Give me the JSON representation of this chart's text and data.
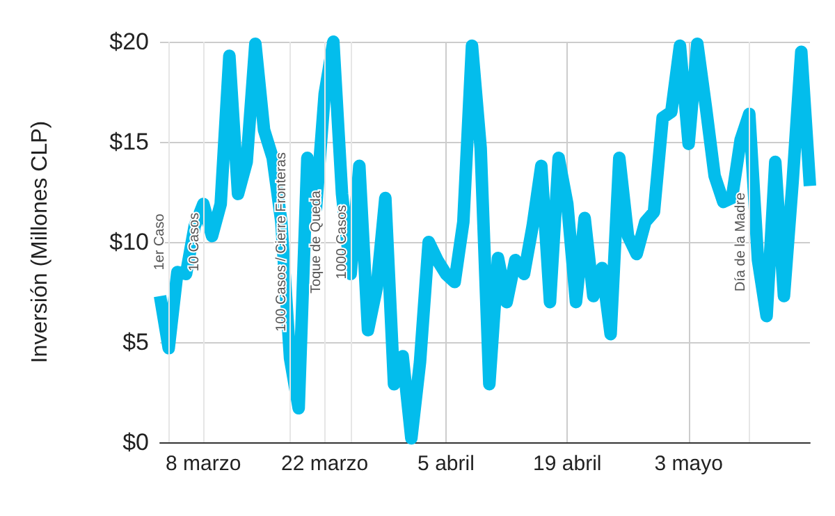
{
  "chart_data": {
    "type": "line",
    "ylabel": "Inversión (Millones CLP)",
    "x": [
      "--03-03",
      "--03-04",
      "--03-05",
      "--03-06",
      "--03-07",
      "--03-08",
      "--03-09",
      "--03-10",
      "--03-11",
      "--03-12",
      "--03-13",
      "--03-14",
      "--03-15",
      "--03-16",
      "--03-17",
      "--03-18",
      "--03-19",
      "--03-20",
      "--03-21",
      "--03-22",
      "--03-23",
      "--03-24",
      "--03-25",
      "--03-26",
      "--03-27",
      "--03-28",
      "--03-29",
      "--03-30",
      "--03-31",
      "--04-01",
      "--04-02",
      "--04-03",
      "--04-04",
      "--04-05",
      "--04-06",
      "--04-07",
      "--04-08",
      "--04-09",
      "--04-10",
      "--04-11",
      "--04-12",
      "--04-13",
      "--04-14",
      "--04-15",
      "--04-16",
      "--04-17",
      "--04-18",
      "--04-19",
      "--04-20",
      "--04-21",
      "--04-22",
      "--04-23",
      "--04-24",
      "--04-25",
      "--04-26",
      "--04-27",
      "--04-28",
      "--04-29",
      "--04-30",
      "--05-01",
      "--05-02",
      "--05-03",
      "--05-04",
      "--05-05",
      "--05-06",
      "--05-07",
      "--05-08",
      "--05-09",
      "--05-10",
      "--05-11",
      "--05-12",
      "--05-13",
      "--05-14",
      "--05-15",
      "--05-16",
      "--05-17"
    ],
    "series": [
      {
        "color": "#03bdec",
        "values": [
          7.3,
          4.7,
          8.5,
          8.4,
          10.8,
          11.9,
          10.3,
          11.9,
          19.3,
          12.4,
          14,
          19.9,
          15.6,
          14.2,
          11,
          4.2,
          1.7,
          14.2,
          11.7,
          17.4,
          20,
          12.4,
          8.4,
          13.8,
          5.6,
          7.7,
          12.2,
          2.9,
          4.3,
          0.2,
          4,
          10,
          9.1,
          8.4,
          8,
          11,
          19.8,
          14.7,
          2.9,
          9.2,
          7,
          9.1,
          8.4,
          10.8,
          13.8,
          7,
          14.2,
          11.9,
          7,
          11.2,
          7.3,
          8.7,
          5.4,
          14.2,
          10.3,
          9.4,
          11,
          11.5,
          16.2,
          16.5,
          19.8,
          14.9,
          19.9,
          16.7,
          13.3,
          12,
          12.2,
          15.1,
          16.4,
          9.1,
          6.3,
          14,
          7.3,
          13,
          19.5,
          12.8
        ]
      }
    ],
    "xlim": [
      "--03-03",
      "--05-17"
    ],
    "xticks": [
      {
        "value": "--03-08",
        "label": "8 marzo"
      },
      {
        "value": "--03-22",
        "label": "22 marzo"
      },
      {
        "value": "--04-05",
        "label": "5 abril"
      },
      {
        "value": "--04-19",
        "label": "19 abril"
      },
      {
        "value": "--05-03",
        "label": "3 mayo"
      }
    ],
    "ylim": [
      0,
      20
    ],
    "yticks": [
      {
        "value": 0,
        "label": "$0"
      },
      {
        "value": 5,
        "label": "$5"
      },
      {
        "value": 10,
        "label": "$10"
      },
      {
        "value": 15,
        "label": "$15"
      },
      {
        "value": 20,
        "label": "$20"
      }
    ],
    "ref_lines": [
      {
        "axis": "x",
        "value": "--03-04",
        "label": "1er Caso",
        "color": "#e6e6e6"
      },
      {
        "axis": "x",
        "value": "--03-08",
        "label": "10 Casos",
        "color": "#e6e6e6"
      },
      {
        "axis": "x",
        "value": "--03-18",
        "label": "100 Casos / Cierre Fronteras",
        "color": "#e6e6e6"
      },
      {
        "axis": "x",
        "value": "--03-22",
        "label": "Toque de Queda",
        "color": "#e6e6e6"
      },
      {
        "axis": "x",
        "value": "--03-25",
        "label": "1000 Casos",
        "color": "#e6e6e6"
      },
      {
        "axis": "x",
        "value": "--05-10",
        "label": "Día de la Madre",
        "color": "#e6e6e6"
      }
    ],
    "grid": true,
    "marker": "none",
    "line_style": "solid"
  }
}
